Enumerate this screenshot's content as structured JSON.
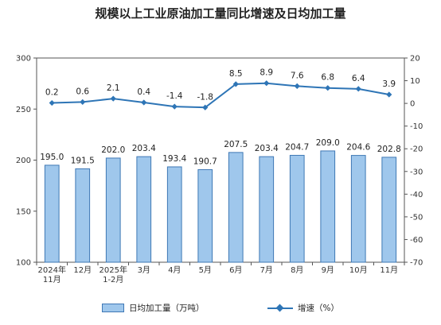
{
  "chart_data": {
    "type": "bar+line",
    "title": "规模以上工业原油加工量同比增速及日均加工量",
    "categories": [
      [
        "2024年",
        "11月"
      ],
      [
        "12月"
      ],
      [
        "2025年",
        "1-2月"
      ],
      [
        "3月"
      ],
      [
        "4月"
      ],
      [
        "5月"
      ],
      [
        "6月"
      ],
      [
        "7月"
      ],
      [
        "8月"
      ],
      [
        "9月"
      ],
      [
        "10月"
      ],
      [
        "11月"
      ]
    ],
    "series": [
      {
        "name": "日均加工量（万吨）",
        "type": "bar",
        "axis": "left",
        "values": [
          195.0,
          191.5,
          202.0,
          203.4,
          193.4,
          190.7,
          207.5,
          203.4,
          204.7,
          209.0,
          204.6,
          202.8
        ],
        "labels": [
          "195.0",
          "191.5",
          "202.0",
          "203.4",
          "193.4",
          "190.7",
          "207.5",
          "203.4",
          "204.7",
          "209.0",
          "204.6",
          "202.8"
        ],
        "color": "#9fc7ec"
      },
      {
        "name": "增速（%）",
        "type": "line",
        "axis": "right",
        "values": [
          0.2,
          0.6,
          2.1,
          0.4,
          -1.4,
          -1.8,
          8.5,
          8.9,
          7.6,
          6.8,
          6.4,
          3.9
        ],
        "labels": [
          "0.2",
          "0.6",
          "2.1",
          "0.4",
          "-1.4",
          "-1.8",
          "8.5",
          "8.9",
          "7.6",
          "6.8",
          "6.4",
          "3.9"
        ],
        "color": "#2e75b6"
      }
    ],
    "y_left": {
      "min": 100,
      "max": 300,
      "ticks": [
        "100",
        "150",
        "200",
        "250",
        "300"
      ]
    },
    "y_right": {
      "min": -70,
      "max": 20,
      "ticks": [
        "20",
        "10",
        "0",
        "-10",
        "-20",
        "-30",
        "-40",
        "-50",
        "-60",
        "-70"
      ]
    },
    "grid": false,
    "legend_position": "bottom"
  }
}
